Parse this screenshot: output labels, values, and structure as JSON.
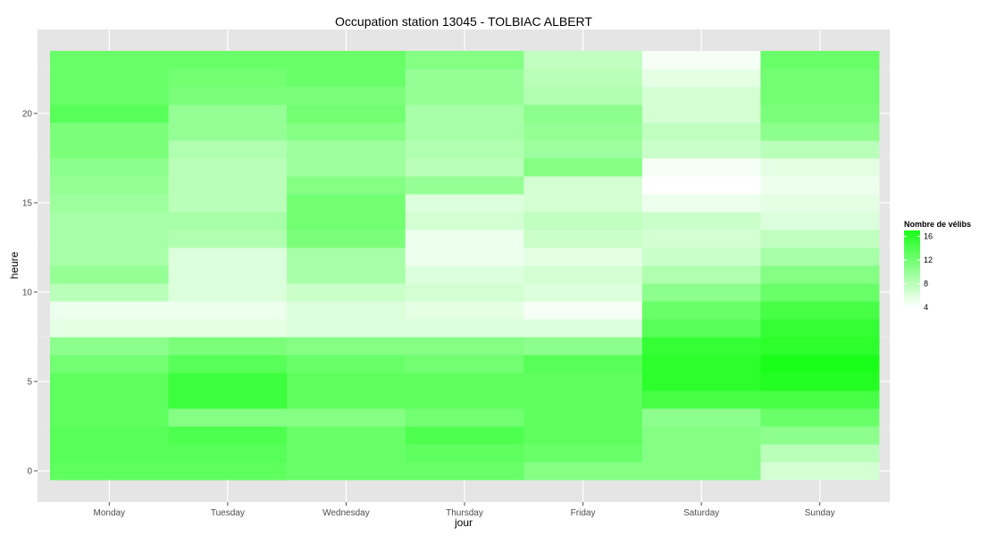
{
  "chart_data": {
    "type": "heatmap",
    "title": "Occupation station 13045 - TOLBIAC ALBERT",
    "xlabel": "jour",
    "ylabel": "heure",
    "categories": [
      "Monday",
      "Tuesday",
      "Wednesday",
      "Thursday",
      "Friday",
      "Saturday",
      "Sunday"
    ],
    "hours": [
      0,
      1,
      2,
      3,
      4,
      5,
      6,
      7,
      8,
      9,
      10,
      11,
      12,
      13,
      14,
      15,
      16,
      17,
      18,
      19,
      20,
      21,
      22,
      23
    ],
    "y_ticks": [
      0,
      5,
      10,
      15,
      20
    ],
    "ylim": [
      -0.5,
      23.5
    ],
    "values": [
      [
        13.0,
        13.0,
        12.5,
        12.5,
        11.0,
        11.0,
        6.5
      ],
      [
        13.5,
        13.5,
        12.5,
        13.0,
        12.5,
        11.0,
        8.0
      ],
      [
        13.5,
        14.0,
        12.5,
        14.0,
        13.0,
        11.0,
        10.5
      ],
      [
        13.0,
        11.0,
        11.0,
        12.0,
        13.0,
        10.5,
        12.5
      ],
      [
        13.0,
        15.0,
        13.0,
        13.0,
        13.0,
        14.5,
        14.5
      ],
      [
        13.0,
        15.0,
        13.0,
        13.0,
        13.0,
        16.0,
        16.5
      ],
      [
        12.0,
        13.5,
        12.5,
        12.0,
        13.5,
        16.0,
        17.0
      ],
      [
        10.5,
        11.5,
        11.0,
        11.0,
        10.5,
        15.5,
        16.0
      ],
      [
        5.5,
        5.5,
        6.0,
        6.0,
        6.0,
        13.5,
        15.5
      ],
      [
        5.0,
        5.0,
        6.0,
        5.5,
        4.5,
        12.5,
        14.5
      ],
      [
        8.0,
        6.0,
        7.0,
        6.5,
        6.0,
        10.5,
        12.5
      ],
      [
        10.0,
        6.0,
        9.0,
        6.0,
        6.5,
        8.5,
        11.0
      ],
      [
        9.0,
        6.0,
        9.0,
        5.0,
        5.5,
        7.0,
        9.0
      ],
      [
        9.0,
        8.5,
        11.5,
        5.0,
        7.0,
        6.5,
        7.5
      ],
      [
        9.0,
        9.0,
        12.0,
        6.5,
        7.5,
        7.0,
        6.0
      ],
      [
        9.5,
        8.0,
        12.0,
        6.0,
        6.5,
        5.0,
        5.5
      ],
      [
        10.0,
        8.0,
        11.0,
        10.0,
        6.5,
        4.0,
        5.0
      ],
      [
        10.5,
        8.0,
        9.5,
        8.0,
        11.0,
        4.5,
        5.5
      ],
      [
        11.5,
        8.5,
        9.5,
        8.5,
        9.5,
        7.0,
        8.0
      ],
      [
        11.5,
        10.0,
        11.0,
        9.0,
        10.0,
        7.5,
        10.5
      ],
      [
        13.5,
        10.0,
        12.0,
        9.0,
        10.5,
        6.5,
        11.5
      ],
      [
        12.5,
        11.5,
        11.5,
        10.0,
        8.5,
        6.5,
        12.0
      ],
      [
        12.5,
        12.0,
        12.5,
        10.0,
        8.0,
        5.5,
        12.0
      ],
      [
        12.5,
        12.5,
        12.5,
        11.0,
        7.5,
        4.5,
        12.5
      ]
    ],
    "scale_min": 4,
    "scale_max": 17,
    "colors": {
      "low": "#ffffff",
      "high": "#1aff1a",
      "panel": "#e5e5e5",
      "grid": "#ffffff"
    },
    "legend": {
      "title": "Nombre de vélibs",
      "ticks": [
        16,
        12,
        8,
        4
      ],
      "placement": "right"
    },
    "grid": true
  }
}
